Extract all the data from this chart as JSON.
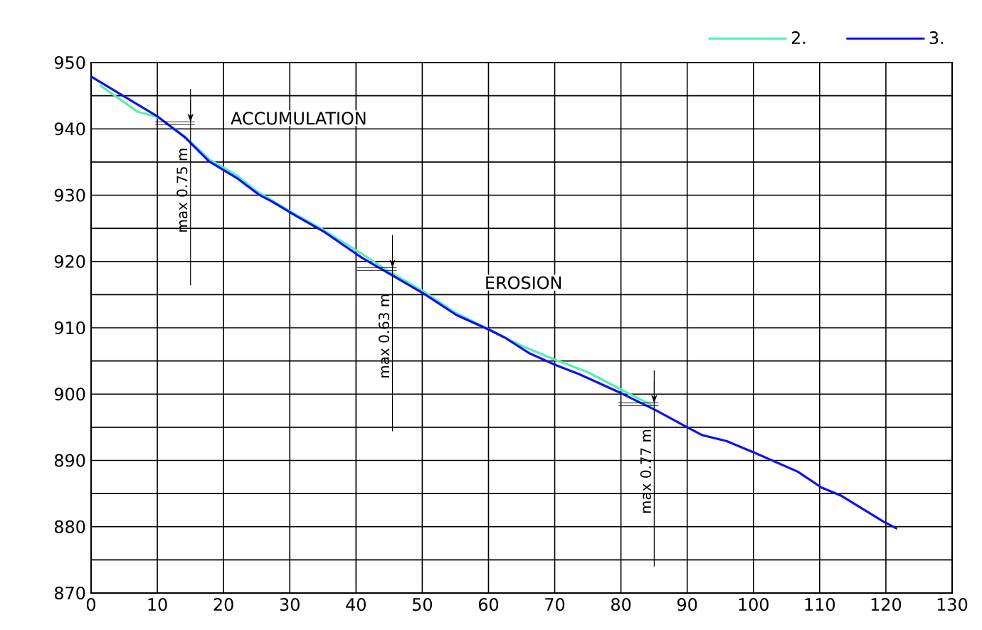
{
  "chart_data": {
    "type": "line",
    "xlim": [
      0,
      130
    ],
    "ylim": [
      870,
      950
    ],
    "xticks": [
      0,
      10,
      20,
      30,
      40,
      50,
      60,
      70,
      80,
      90,
      100,
      110,
      120,
      130
    ],
    "yticks": [
      870,
      {
        "value": 875,
        "label": null
      },
      880,
      {
        "value": 885,
        "label": null
      },
      890,
      {
        "value": 895,
        "label": null
      },
      900,
      {
        "value": 905,
        "label": null
      },
      910,
      {
        "value": 915,
        "label": null
      },
      920,
      {
        "value": 925,
        "label": null
      },
      930,
      {
        "value": 935,
        "label": null
      },
      940,
      {
        "value": 945,
        "label": null
      },
      950
    ],
    "grid": true,
    "legend": "top right",
    "series": [
      {
        "name": "2.",
        "color": "#52f0b0",
        "x": [
          1.3,
          7,
          10,
          14,
          18,
          22,
          25,
          30,
          35,
          40,
          45,
          50,
          55,
          60,
          65,
          70,
          75,
          80,
          84.7
        ],
        "values": [
          946.6,
          942.6,
          941.8,
          939,
          935.3,
          933,
          930.6,
          927.6,
          924.8,
          921.7,
          918.5,
          915.6,
          912.3,
          909.8,
          907.3,
          905.2,
          903.3,
          900.7,
          898.3
        ]
      },
      {
        "name": "3.",
        "color": "#1010f0",
        "x": [
          0,
          10,
          14.2,
          17.8,
          22,
          25.3,
          27.4,
          30.9,
          35.3,
          41,
          46,
          50.3,
          55.2,
          60.1,
          62.5,
          66.1,
          70.1,
          73.7,
          80.1,
          85.2,
          89.8,
          92.3,
          96,
          100.3,
          106.7,
          110.3,
          113.2,
          119.6,
          121.7
        ],
        "values": [
          947.9,
          941.9,
          938.7,
          935.1,
          932.6,
          930.1,
          929,
          926.9,
          924.4,
          920.5,
          917.6,
          915.1,
          911.9,
          909.7,
          908.5,
          906.2,
          904.4,
          903,
          900.1,
          897.6,
          895.1,
          893.8,
          892.9,
          891.1,
          888.3,
          885.9,
          884.7,
          880.8,
          879.7
        ]
      }
    ],
    "annotations": [
      "ACCUMULATION",
      "EROSION",
      "max 0.75 m",
      "max 0.63 m",
      "max 0.77 m"
    ]
  }
}
